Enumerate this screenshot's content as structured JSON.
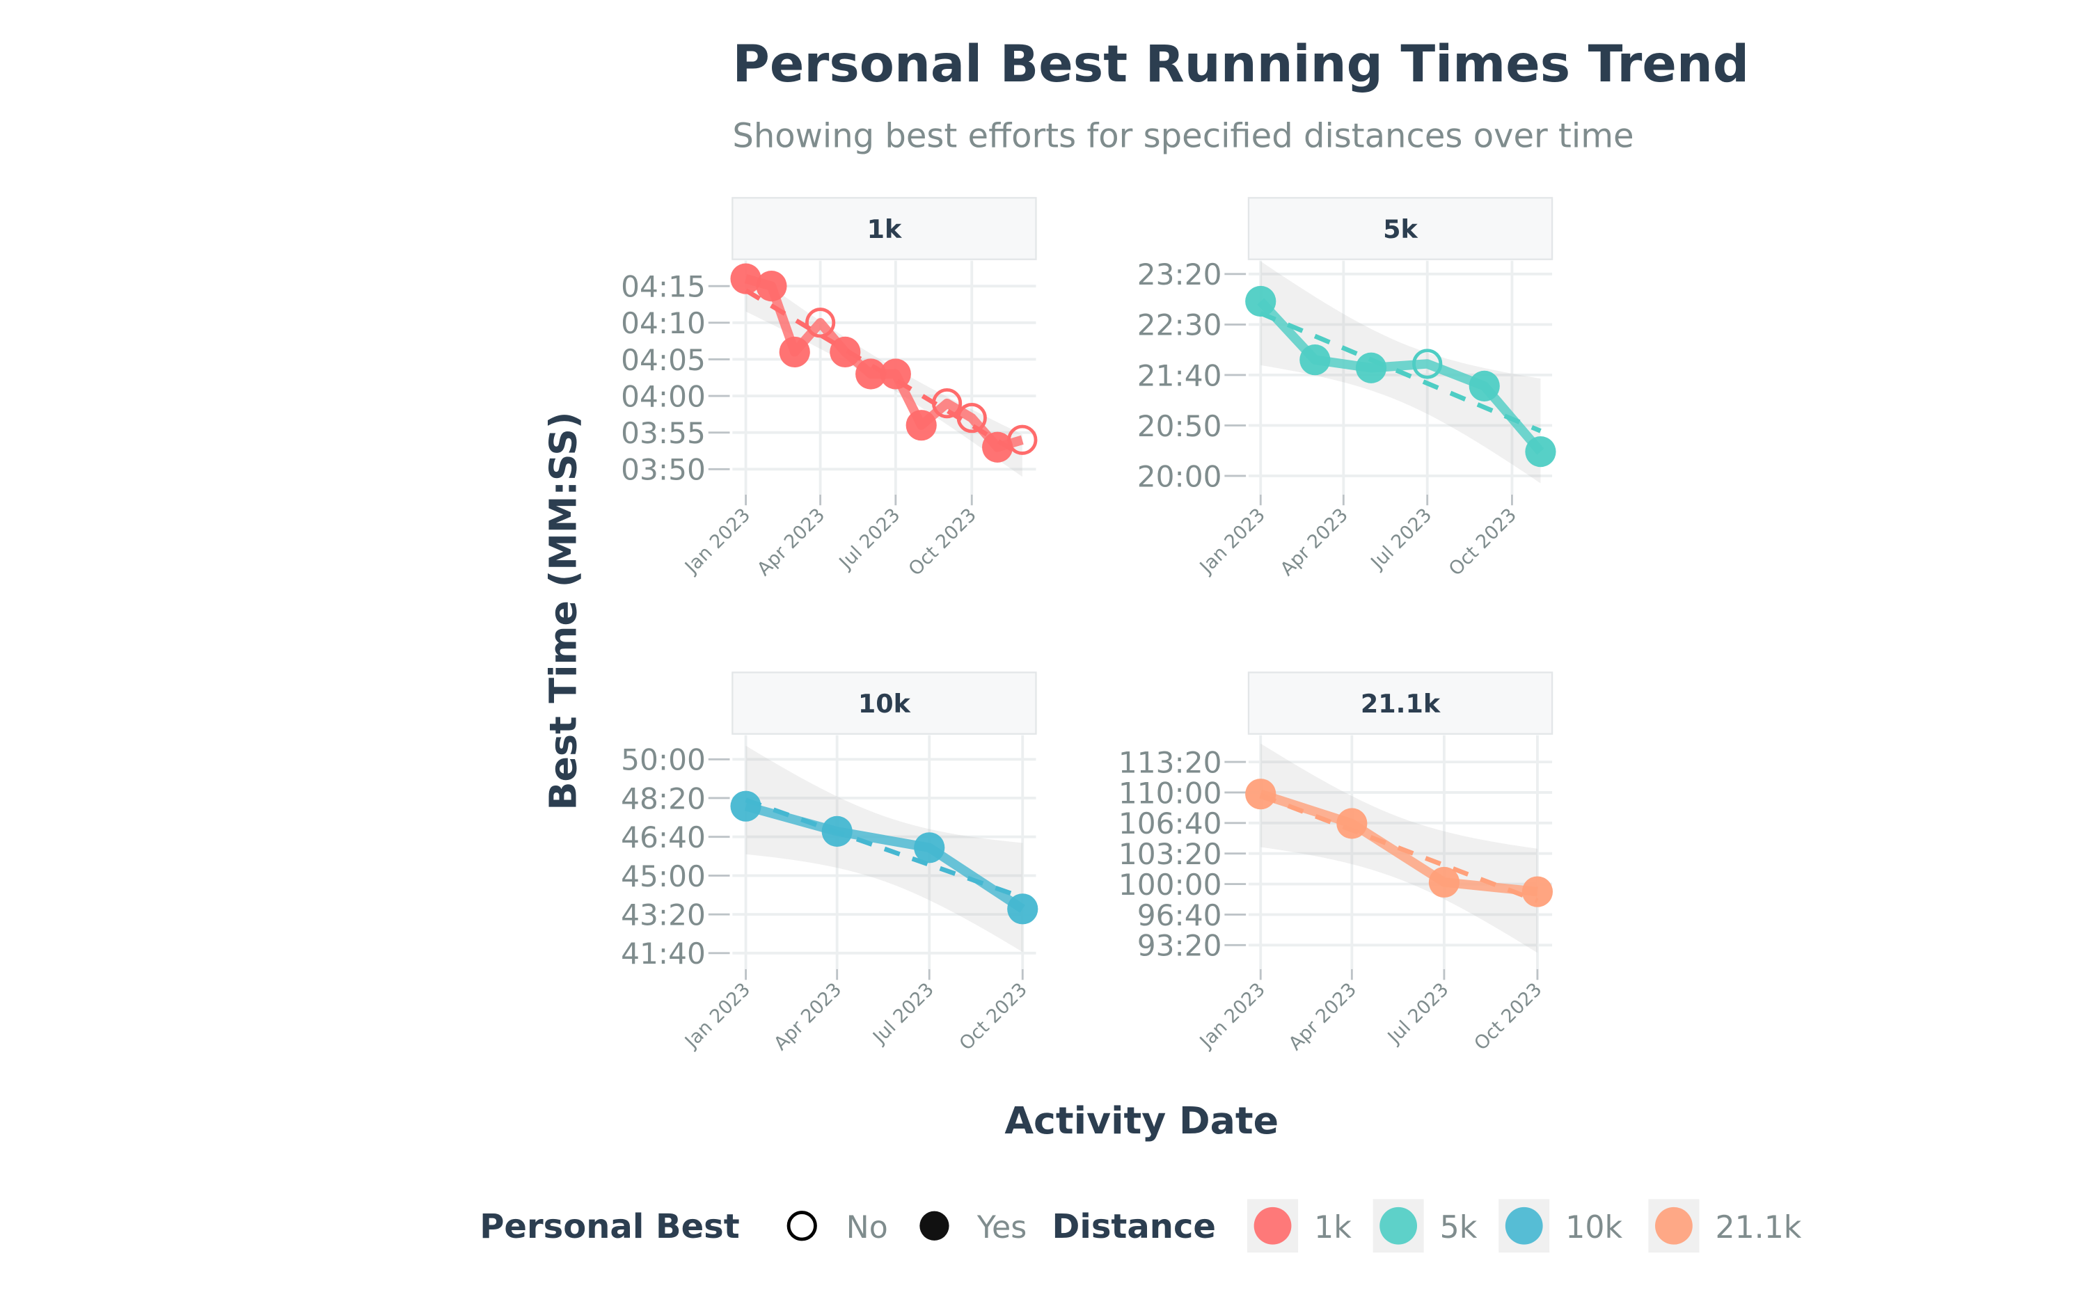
{
  "title": "Personal Best Running Times Trend",
  "subtitle": "Showing best efforts for specified distances over time",
  "chart_data": {
    "type": "line",
    "title": "Personal Best Running Times Trend",
    "subtitle": "Showing best efforts for specified distances over time",
    "xlabel": "Activity Date",
    "ylabel": "Best Time (MM:SS)",
    "facet_by": "Distance",
    "grid": true,
    "trend": "linear fit, dashed, with grey confidence band",
    "legend": {
      "placement": "bottom",
      "shape_title": "Personal Best",
      "shape_entries": [
        "No",
        "Yes"
      ],
      "color_title": "Distance",
      "color_entries": [
        "1k",
        "5k",
        "10k",
        "21.1k"
      ]
    },
    "x_tick_labels": [
      "Jan 2023",
      "Apr 2023",
      "Jul 2023",
      "Oct 2023"
    ],
    "panels": [
      {
        "name": "1k",
        "color": "#FF6B6B",
        "y_ticks": [
          "03:50",
          "03:55",
          "04:00",
          "04:05",
          "04:10",
          "04:15"
        ],
        "points": [
          {
            "date": "2023-01-01",
            "time": "04:16",
            "pb": true
          },
          {
            "date": "2023-02-01",
            "time": "04:15",
            "pb": true
          },
          {
            "date": "2023-03-01",
            "time": "04:06",
            "pb": true
          },
          {
            "date": "2023-04-01",
            "time": "04:10",
            "pb": false
          },
          {
            "date": "2023-05-01",
            "time": "04:06",
            "pb": true
          },
          {
            "date": "2023-06-01",
            "time": "04:03",
            "pb": true
          },
          {
            "date": "2023-07-01",
            "time": "04:03",
            "pb": true
          },
          {
            "date": "2023-08-01",
            "time": "03:56",
            "pb": true
          },
          {
            "date": "2023-09-01",
            "time": "03:59",
            "pb": false
          },
          {
            "date": "2023-10-01",
            "time": "03:57",
            "pb": false
          },
          {
            "date": "2023-11-01",
            "time": "03:53",
            "pb": true
          },
          {
            "date": "2023-12-01",
            "time": "03:54",
            "pb": false
          }
        ]
      },
      {
        "name": "5k",
        "color": "#4ECDC4",
        "y_ticks": [
          "20:00",
          "20:50",
          "21:40",
          "22:30",
          "23:20"
        ],
        "points": [
          {
            "date": "2023-01-01",
            "time": "22:53",
            "pb": true
          },
          {
            "date": "2023-03-01",
            "time": "21:55",
            "pb": true
          },
          {
            "date": "2023-05-01",
            "time": "21:47",
            "pb": true
          },
          {
            "date": "2023-07-01",
            "time": "21:51",
            "pb": false
          },
          {
            "date": "2023-09-01",
            "time": "21:29",
            "pb": true
          },
          {
            "date": "2023-11-01",
            "time": "20:24",
            "pb": true
          }
        ]
      },
      {
        "name": "10k",
        "color": "#45B7D1",
        "y_ticks": [
          "41:40",
          "43:20",
          "45:00",
          "46:40",
          "48:20",
          "50:00"
        ],
        "points": [
          {
            "date": "2023-01-01",
            "time": "47:59",
            "pb": true
          },
          {
            "date": "2023-04-01",
            "time": "46:54",
            "pb": true
          },
          {
            "date": "2023-07-01",
            "time": "46:12",
            "pb": true
          },
          {
            "date": "2023-10-01",
            "time": "43:34",
            "pb": true
          }
        ]
      },
      {
        "name": "21.1k",
        "color": "#FFA07A",
        "y_ticks": [
          "93:20",
          "96:40",
          "100:00",
          "103:20",
          "106:40",
          "110:00",
          "113:20"
        ],
        "points": [
          {
            "date": "2023-01-01",
            "time": "109:50",
            "pb": true
          },
          {
            "date": "2023-04-01",
            "time": "106:37",
            "pb": true
          },
          {
            "date": "2023-07-01",
            "time": "100:12",
            "pb": true
          },
          {
            "date": "2023-10-01",
            "time": "99:10",
            "pb": true
          }
        ]
      }
    ]
  }
}
